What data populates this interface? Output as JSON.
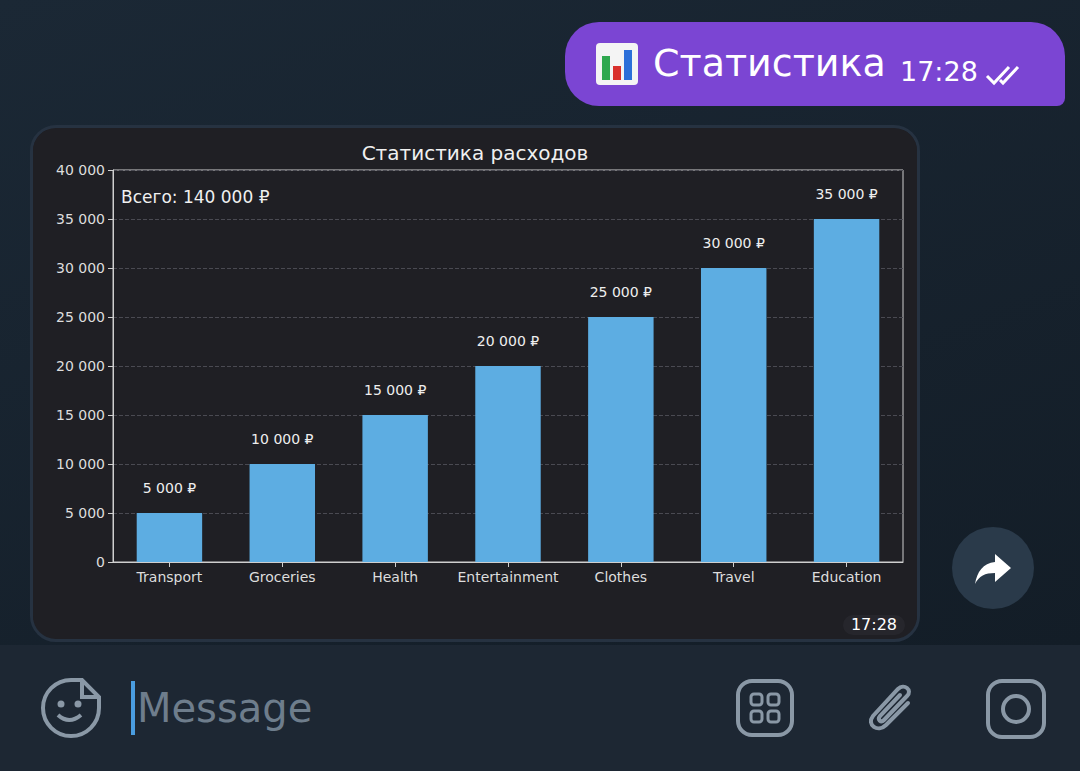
{
  "message": {
    "text": "Статистика",
    "time": "17:28"
  },
  "chart_time": "17:28",
  "input": {
    "placeholder": "Message"
  },
  "chart_data": {
    "type": "bar",
    "title": "Статистика расходов",
    "annotation": "Всего: 140 000 ₽",
    "categories": [
      "Transport",
      "Groceries",
      "Health",
      "Entertainment",
      "Clothes",
      "Travel",
      "Education"
    ],
    "values": [
      5000,
      10000,
      15000,
      20000,
      25000,
      30000,
      35000
    ],
    "value_labels": [
      "5 000 ₽",
      "10 000 ₽",
      "15 000 ₽",
      "20 000 ₽",
      "25 000 ₽",
      "30 000 ₽",
      "35 000 ₽"
    ],
    "color": "#5dade2",
    "ylim": [
      0,
      40000
    ],
    "yticks": [
      0,
      {
        "value": 5000,
        "label": "5 000"
      },
      {
        "value": 10000,
        "label": "10 000"
      },
      {
        "value": 15000,
        "label": "15 000"
      },
      {
        "value": 20000,
        "label": "20 000"
      },
      {
        "value": 25000,
        "label": "25 000"
      },
      {
        "value": 30000,
        "label": "30 000"
      },
      {
        "value": 35000,
        "label": "35 000"
      },
      {
        "value": 40000,
        "label": "40 000"
      }
    ],
    "grid": true,
    "data_labels": true
  }
}
